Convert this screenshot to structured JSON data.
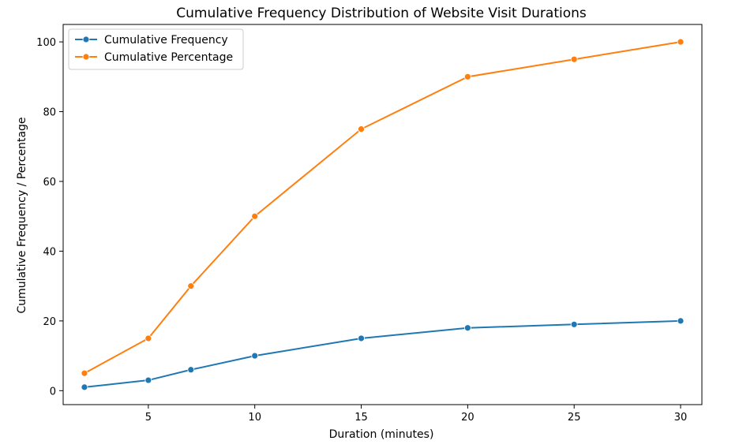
{
  "chart_data": {
    "type": "line",
    "title": "Cumulative Frequency Distribution of Website Visit Durations",
    "xlabel": "Duration (minutes)",
    "ylabel": "Cumulative Frequency / Percentage",
    "x": [
      2,
      5,
      7,
      10,
      15,
      20,
      25,
      30
    ],
    "xlim": [
      1.0,
      31.0
    ],
    "ylim": [
      -4,
      105
    ],
    "xticks": [
      5,
      10,
      15,
      20,
      25,
      30
    ],
    "yticks": [
      0,
      20,
      40,
      60,
      80,
      100
    ],
    "grid": false,
    "legend_position": "top-left",
    "series": [
      {
        "name": "Cumulative Frequency",
        "color": "#1f77b4",
        "marker": "circle",
        "values": [
          1,
          3,
          6,
          10,
          15,
          18,
          19,
          20
        ]
      },
      {
        "name": "Cumulative Percentage",
        "color": "#ff7f0e",
        "marker": "circle",
        "values": [
          5,
          15,
          30,
          50,
          75,
          90,
          95,
          100
        ]
      }
    ]
  }
}
